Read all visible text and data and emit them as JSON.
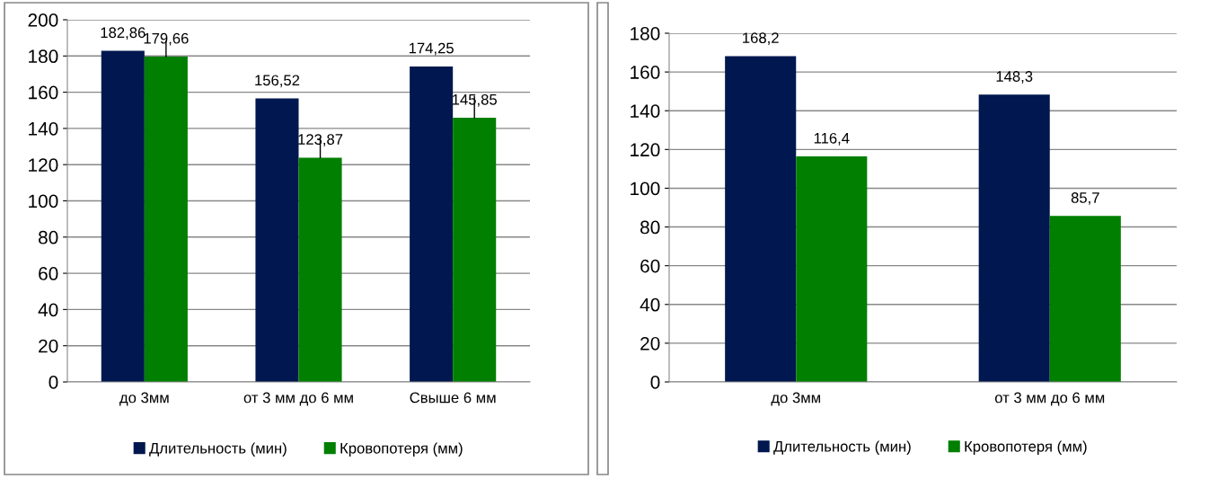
{
  "chart_data": [
    {
      "type": "bar",
      "categories": [
        "до 3мм",
        "от 3 мм до 6 мм",
        "Свыше 6 мм"
      ],
      "series": [
        {
          "name": "Длительность (мин)",
          "color": "#00174f",
          "values": [
            182.86,
            156.52,
            174.25
          ],
          "value_labels": [
            "182,86",
            "156,52",
            "174,25"
          ]
        },
        {
          "name": "Кровопотеря (мм)",
          "color": "#007f00",
          "values": [
            179.66,
            123.87,
            145.85
          ],
          "value_labels": [
            "179,66",
            "123,87",
            "145,85"
          ],
          "errors": [
            [
              179.66,
              188.3
            ],
            [
              123.87,
              134.8
            ],
            [
              145.85,
              157.6
            ]
          ]
        }
      ],
      "ylim": [
        0,
        200
      ],
      "yticks": [
        0,
        20,
        40,
        60,
        80,
        100,
        120,
        140,
        160,
        180,
        200
      ],
      "grid": "y",
      "legend": "bottom"
    },
    {
      "type": "bar",
      "categories": [
        "до 3мм",
        "от 3 мм до 6 мм"
      ],
      "series": [
        {
          "name": "Длительность (мин)",
          "color": "#00174f",
          "values": [
            168.2,
            148.3
          ],
          "value_labels": [
            "168,2",
            "148,3"
          ]
        },
        {
          "name": "Кровопотеря (мм)",
          "color": "#007f00",
          "values": [
            116.4,
            85.7
          ],
          "value_labels": [
            "116,4",
            "85,7"
          ]
        }
      ],
      "ylim": [
        0,
        180
      ],
      "yticks": [
        0,
        20,
        40,
        60,
        80,
        100,
        120,
        140,
        160,
        180
      ],
      "grid": "y",
      "legend": "bottom"
    }
  ]
}
